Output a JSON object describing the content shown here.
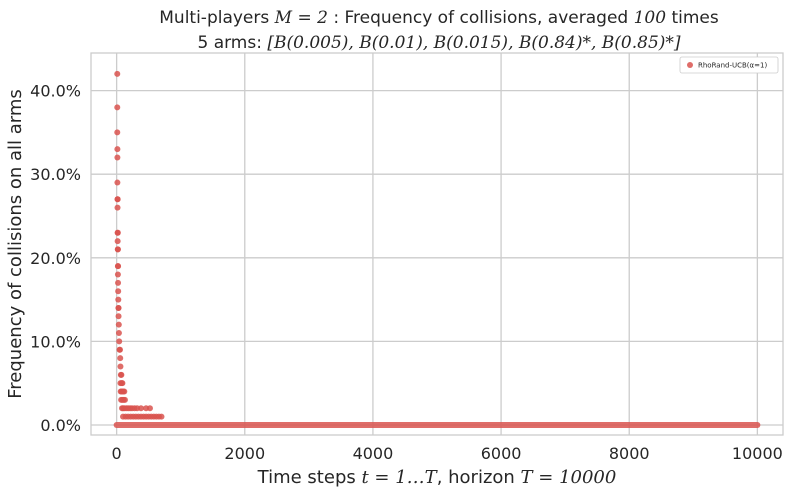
{
  "chart_data": {
    "type": "scatter",
    "title_line1": {
      "prefix": "Multi-players ",
      "math1": "M = 2",
      "middle": " : Frequency of collisions, averaged ",
      "math2": "100",
      "suffix": " times"
    },
    "title_line2": {
      "prefix": "5 arms: ",
      "math": "[B(0.005), B(0.01), B(0.015), B(0.84)*, B(0.85)*]"
    },
    "xlabel": {
      "prefix": "Time steps ",
      "math1": "t = 1…T",
      "middle": ", horizon ",
      "math2": "T = 10000"
    },
    "ylabel": "Frequency of collisions on all arms",
    "xlim": [
      -400,
      10400
    ],
    "ylim": [
      -0.012,
      0.445
    ],
    "x_ticks": [
      0,
      2000,
      4000,
      6000,
      8000,
      10000
    ],
    "x_tick_labels": [
      "0",
      "2000",
      "4000",
      "6000",
      "8000",
      "10000"
    ],
    "y_ticks": [
      0.0,
      0.1,
      0.2,
      0.3,
      0.4
    ],
    "y_tick_labels": [
      "0.0%",
      "10.0%",
      "20.0%",
      "30.0%",
      "40.0%"
    ],
    "grid": true,
    "legend_position": "top-right",
    "colors": {
      "series": "#d9534f",
      "grid": "#cccccc",
      "axis": "#cccccc"
    },
    "series": [
      {
        "name": "RhoRand-UCB(α=1)",
        "points": [
          [
            10,
            0.42
          ],
          [
            10,
            0.38
          ],
          [
            10,
            0.35
          ],
          [
            12,
            0.33
          ],
          [
            12,
            0.32
          ],
          [
            12,
            0.29
          ],
          [
            14,
            0.27
          ],
          [
            16,
            0.27
          ],
          [
            14,
            0.26
          ],
          [
            16,
            0.23
          ],
          [
            18,
            0.23
          ],
          [
            16,
            0.22
          ],
          [
            18,
            0.21
          ],
          [
            20,
            0.21
          ],
          [
            20,
            0.19
          ],
          [
            22,
            0.19
          ],
          [
            20,
            0.18
          ],
          [
            22,
            0.17
          ],
          [
            24,
            0.16
          ],
          [
            26,
            0.15
          ],
          [
            28,
            0.14
          ],
          [
            30,
            0.14
          ],
          [
            30,
            0.13
          ],
          [
            34,
            0.12
          ],
          [
            36,
            0.11
          ],
          [
            40,
            0.1
          ],
          [
            46,
            0.09
          ],
          [
            52,
            0.09
          ],
          [
            56,
            0.08
          ],
          [
            60,
            0.07
          ],
          [
            66,
            0.06
          ],
          [
            74,
            0.06
          ],
          [
            60,
            0.05
          ],
          [
            80,
            0.05
          ],
          [
            90,
            0.05
          ],
          [
            64,
            0.04
          ],
          [
            76,
            0.04
          ],
          [
            90,
            0.04
          ],
          [
            104,
            0.04
          ],
          [
            120,
            0.04
          ],
          [
            70,
            0.03
          ],
          [
            90,
            0.03
          ],
          [
            110,
            0.03
          ],
          [
            130,
            0.03
          ],
          [
            84,
            0.02
          ],
          [
            100,
            0.02
          ],
          [
            120,
            0.02
          ],
          [
            150,
            0.02
          ],
          [
            180,
            0.02
          ],
          [
            210,
            0.02
          ],
          [
            240,
            0.02
          ],
          [
            280,
            0.02
          ],
          [
            320,
            0.02
          ],
          [
            380,
            0.02
          ],
          [
            460,
            0.02
          ],
          [
            520,
            0.02
          ],
          [
            580,
            0.01
          ],
          [
            620,
            0.01
          ],
          [
            700,
            0.01
          ],
          [
            100,
            0.01
          ],
          [
            140,
            0.01
          ],
          [
            180,
            0.01
          ],
          [
            220,
            0.01
          ],
          [
            260,
            0.01
          ],
          [
            300,
            0.01
          ],
          [
            340,
            0.01
          ],
          [
            380,
            0.01
          ],
          [
            420,
            0.01
          ],
          [
            460,
            0.01
          ],
          [
            500,
            0.01
          ],
          [
            540,
            0.01
          ],
          [
            660,
            0.01
          ]
        ],
        "zero_band_x": [
          0,
          10000
        ]
      }
    ]
  }
}
